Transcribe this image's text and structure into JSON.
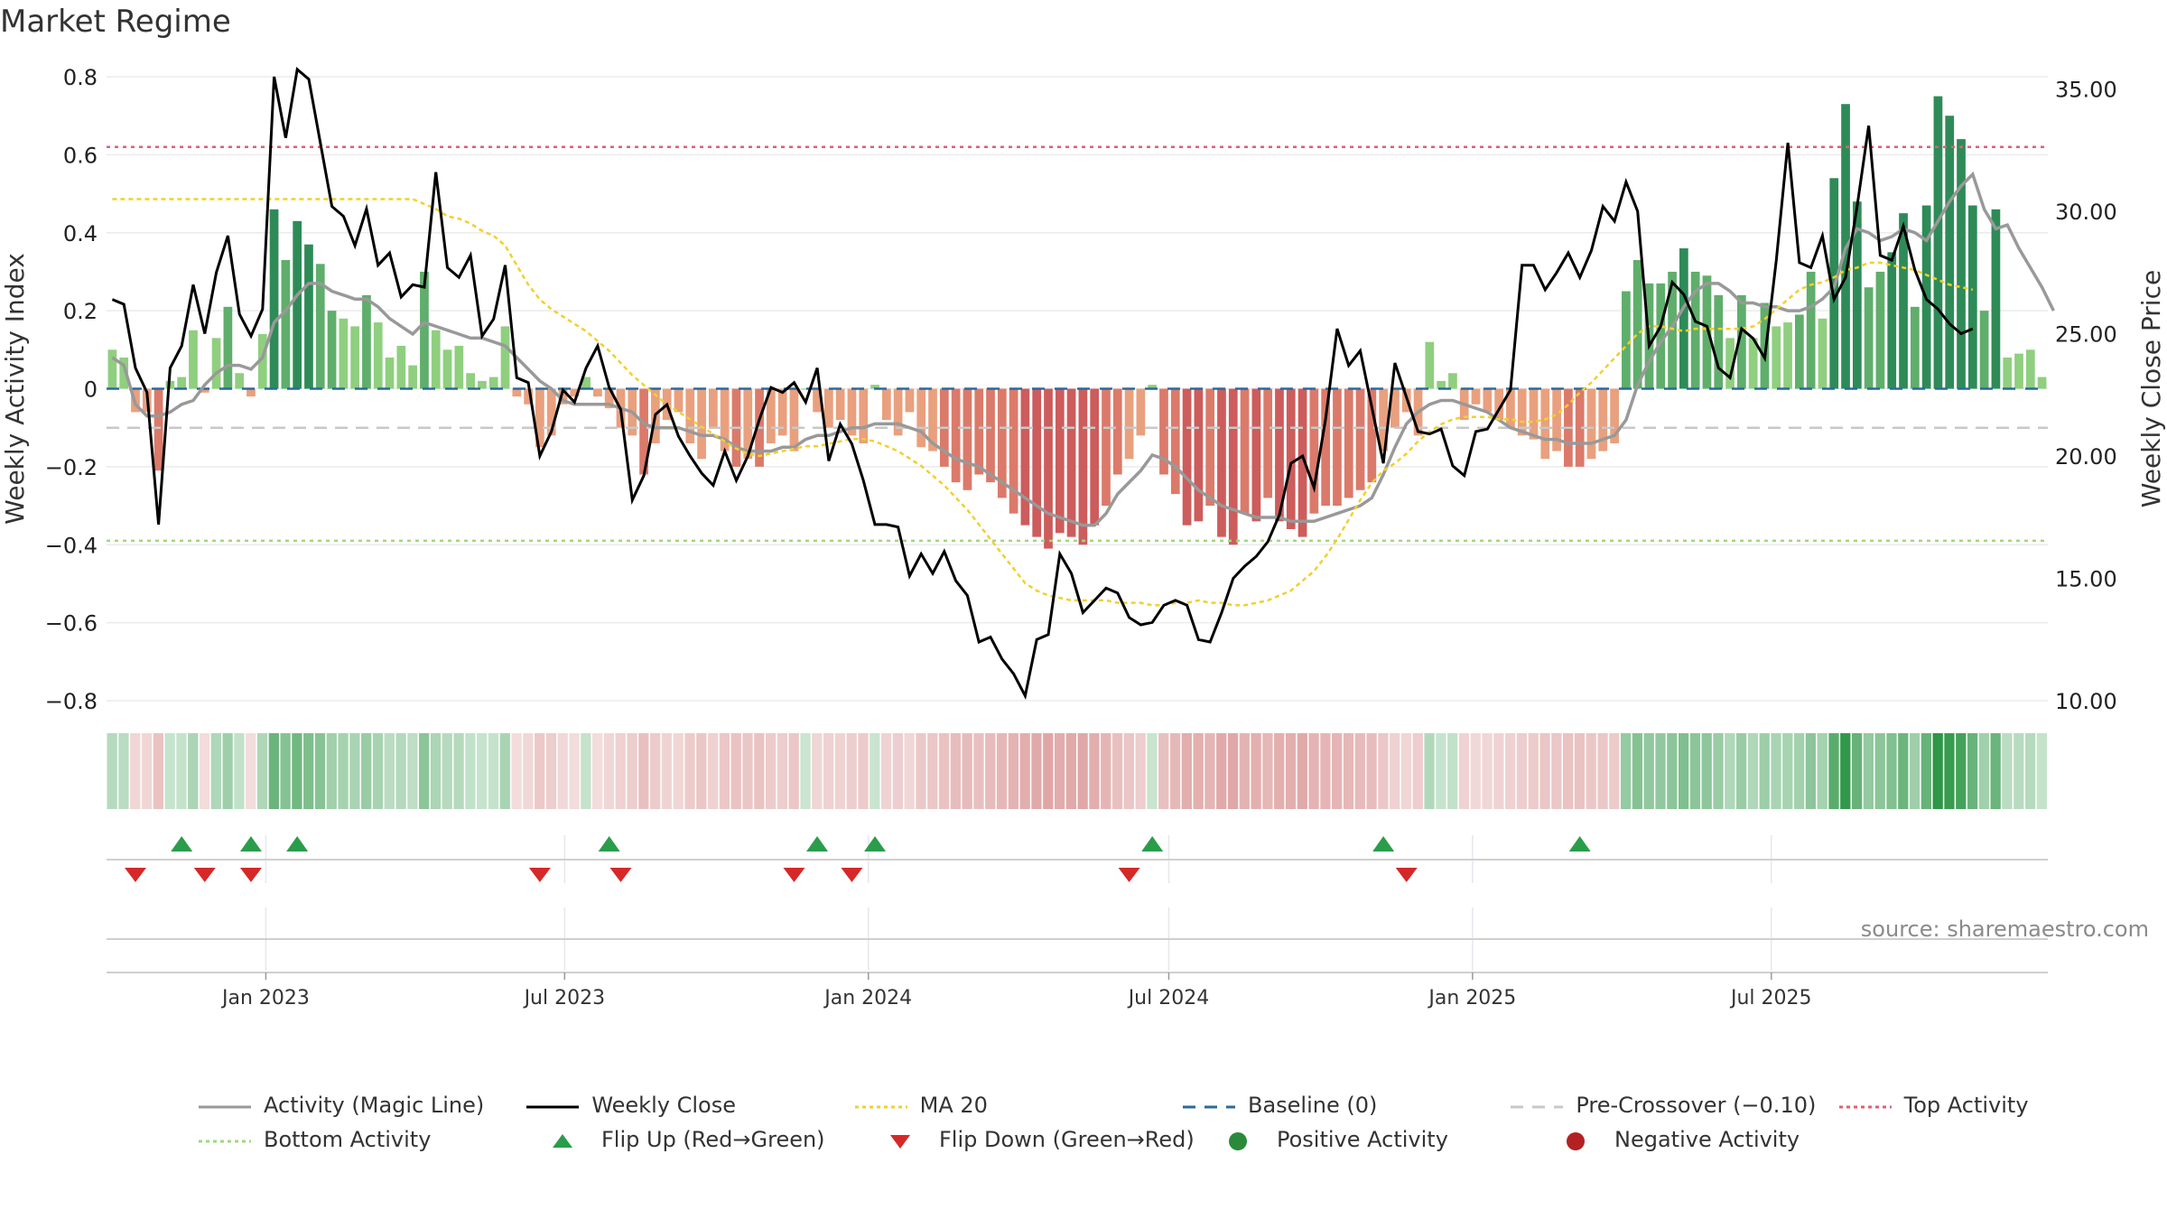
{
  "page": {
    "title": "Market Regime",
    "source": "source: sharemaestro.com"
  },
  "legend": [
    {
      "label": "Activity (Magic Line)",
      "style": "line",
      "color": "#999999"
    },
    {
      "label": "Weekly Close",
      "style": "line",
      "color": "#000000"
    },
    {
      "label": "MA 20",
      "style": "dotted",
      "color": "#f2d02b"
    },
    {
      "label": "Baseline (0)",
      "style": "dashed",
      "color": "#2a6a9e"
    },
    {
      "label": "Pre-Crossover (−0.10)",
      "style": "dashed",
      "color": "#c8c8c8"
    },
    {
      "label": "Top Activity",
      "style": "dotted",
      "color": "#e06070"
    },
    {
      "label": "Bottom Activity",
      "style": "dotted",
      "color": "#9ed97a"
    },
    {
      "label": "Flip Up (Red→Green)",
      "style": "triangle-up",
      "color": "#2a9d4a"
    },
    {
      "label": "Flip Down (Green→Red)",
      "style": "triangle-down",
      "color": "#d62828"
    },
    {
      "label": "Positive Activity",
      "style": "dot",
      "color": "#2a8a3a"
    },
    {
      "label": "Negative Activity",
      "style": "dot",
      "color": "#b22222"
    }
  ],
  "chart_data": {
    "type": "bar",
    "x_start": "2022-09-30",
    "x_step_days": 7,
    "x_ticks": [
      "Jan 2023",
      "Jul 2023",
      "Jan 2024",
      "Jul 2024",
      "Jan 2025",
      "Jul 2025"
    ],
    "x_tick_dates": [
      "2023-01-01",
      "2023-07-01",
      "2024-01-01",
      "2024-07-01",
      "2025-01-01",
      "2025-07-01"
    ],
    "ylabel": "Weekly Activity Index",
    "y2label": "Weekly Close Price",
    "ylim": [
      -0.8,
      0.8
    ],
    "y_ticks": [
      0.8,
      0.6,
      0.4,
      0.2,
      0,
      -0.2,
      -0.4,
      -0.6,
      -0.8
    ],
    "y_tick_labels": [
      "0.8",
      "0.6",
      "0.4",
      "0.2",
      "0",
      "−0.2",
      "−0.4",
      "−0.6",
      "−0.8"
    ],
    "y2lim": [
      10,
      35.5
    ],
    "y2_ticks": [
      35,
      30,
      25,
      20,
      15,
      10
    ],
    "y2_tick_labels": [
      "35.00",
      "30.00",
      "25.00",
      "20.00",
      "15.00",
      "10.00"
    ],
    "thresholds": {
      "top": 0.62,
      "bottom": -0.39,
      "pre_crossover": -0.1,
      "baseline": 0
    },
    "activity": [
      0.1,
      0.08,
      -0.06,
      -0.06,
      -0.21,
      0.02,
      0.03,
      0.15,
      -0.01,
      0.13,
      0.21,
      0.04,
      -0.02,
      0.14,
      0.46,
      0.33,
      0.43,
      0.37,
      0.32,
      0.2,
      0.18,
      0.16,
      0.24,
      0.17,
      0.08,
      0.11,
      0.06,
      0.3,
      0.15,
      0.1,
      0.11,
      0.04,
      0.02,
      0.03,
      0.16,
      -0.02,
      -0.04,
      -0.15,
      -0.12,
      -0.04,
      -0.02,
      0.03,
      -0.02,
      -0.05,
      -0.1,
      -0.12,
      -0.22,
      -0.14,
      -0.08,
      -0.06,
      -0.14,
      -0.18,
      -0.1,
      -0.16,
      -0.2,
      -0.18,
      -0.2,
      -0.14,
      -0.12,
      -0.16,
      0.0,
      -0.06,
      -0.1,
      -0.08,
      -0.12,
      -0.14,
      0.01,
      -0.08,
      -0.12,
      -0.06,
      -0.15,
      -0.16,
      -0.2,
      -0.24,
      -0.26,
      -0.22,
      -0.24,
      -0.28,
      -0.32,
      -0.35,
      -0.38,
      -0.41,
      -0.37,
      -0.38,
      -0.4,
      -0.35,
      -0.3,
      -0.22,
      -0.18,
      -0.12,
      0.01,
      -0.22,
      -0.27,
      -0.35,
      -0.34,
      -0.3,
      -0.38,
      -0.4,
      -0.32,
      -0.34,
      -0.28,
      -0.34,
      -0.36,
      -0.38,
      -0.32,
      -0.3,
      -0.3,
      -0.28,
      -0.26,
      -0.24,
      -0.16,
      -0.1,
      -0.06,
      -0.12,
      0.12,
      0.02,
      0.04,
      -0.08,
      -0.04,
      -0.06,
      -0.08,
      -0.1,
      -0.12,
      -0.13,
      -0.18,
      -0.16,
      -0.2,
      -0.2,
      -0.18,
      -0.16,
      -0.14,
      0.25,
      0.33,
      0.27,
      0.27,
      0.3,
      0.36,
      0.3,
      0.29,
      0.24,
      0.13,
      0.24,
      0.13,
      0.22,
      0.16,
      0.17,
      0.19,
      0.3,
      0.18,
      0.54,
      0.73,
      0.48,
      0.26,
      0.3,
      0.35,
      0.45,
      0.21,
      0.47,
      0.75,
      0.7,
      0.64,
      0.47,
      0.2,
      0.46,
      0.08,
      0.09,
      0.1,
      0.03
    ],
    "magic_line": [
      0.08,
      0.06,
      -0.04,
      -0.07,
      -0.07,
      -0.06,
      -0.04,
      -0.03,
      0.01,
      0.04,
      0.06,
      0.06,
      0.05,
      0.08,
      0.17,
      0.2,
      0.24,
      0.27,
      0.27,
      0.25,
      0.24,
      0.23,
      0.23,
      0.21,
      0.18,
      0.16,
      0.14,
      0.17,
      0.16,
      0.15,
      0.14,
      0.13,
      0.13,
      0.12,
      0.11,
      0.08,
      0.05,
      0.02,
      0.0,
      -0.03,
      -0.04,
      -0.04,
      -0.04,
      -0.04,
      -0.05,
      -0.06,
      -0.09,
      -0.1,
      -0.1,
      -0.1,
      -0.11,
      -0.12,
      -0.12,
      -0.13,
      -0.15,
      -0.16,
      -0.16,
      -0.16,
      -0.15,
      -0.15,
      -0.13,
      -0.12,
      -0.12,
      -0.11,
      -0.1,
      -0.1,
      -0.09,
      -0.09,
      -0.09,
      -0.1,
      -0.11,
      -0.14,
      -0.16,
      -0.18,
      -0.19,
      -0.2,
      -0.22,
      -0.24,
      -0.26,
      -0.28,
      -0.3,
      -0.32,
      -0.33,
      -0.34,
      -0.35,
      -0.35,
      -0.32,
      -0.27,
      -0.24,
      -0.21,
      -0.17,
      -0.18,
      -0.2,
      -0.23,
      -0.26,
      -0.28,
      -0.3,
      -0.31,
      -0.32,
      -0.33,
      -0.33,
      -0.33,
      -0.34,
      -0.34,
      -0.34,
      -0.33,
      -0.32,
      -0.31,
      -0.3,
      -0.28,
      -0.22,
      -0.15,
      -0.09,
      -0.06,
      -0.04,
      -0.03,
      -0.03,
      -0.04,
      -0.05,
      -0.06,
      -0.08,
      -0.1,
      -0.11,
      -0.12,
      -0.13,
      -0.13,
      -0.14,
      -0.14,
      -0.14,
      -0.13,
      -0.12,
      -0.08,
      0.01,
      0.07,
      0.12,
      0.16,
      0.21,
      0.25,
      0.27,
      0.27,
      0.25,
      0.22,
      0.22,
      0.21,
      0.21,
      0.2,
      0.2,
      0.21,
      0.23,
      0.26,
      0.36,
      0.41,
      0.4,
      0.38,
      0.39,
      0.41,
      0.4,
      0.38,
      0.43,
      0.48,
      0.52,
      0.55,
      0.46,
      0.41,
      0.42,
      0.36,
      0.31,
      0.26,
      0.2
    ],
    "weekly_close": [
      26.4,
      26.2,
      23.6,
      22.6,
      17.2,
      23.6,
      24.5,
      27.0,
      25.0,
      27.5,
      29.0,
      25.8,
      24.9,
      26.0,
      35.5,
      33.0,
      35.8,
      35.4,
      32.8,
      30.2,
      29.8,
      28.6,
      30.1,
      27.8,
      28.3,
      26.5,
      27.0,
      26.9,
      31.6,
      27.7,
      27.3,
      28.2,
      24.9,
      25.6,
      27.8,
      23.2,
      23.0,
      20.0,
      21.0,
      22.7,
      22.2,
      23.6,
      24.5,
      22.8,
      21.9,
      18.2,
      19.2,
      21.7,
      22.1,
      20.8,
      20.0,
      19.3,
      18.8,
      20.2,
      19.0,
      20.0,
      21.5,
      22.8,
      22.6,
      23.0,
      22.2,
      23.6,
      19.8,
      21.3,
      20.5,
      19.0,
      17.2,
      17.2,
      17.1,
      15.1,
      16.0,
      15.2,
      16.1,
      14.9,
      14.3,
      12.4,
      12.6,
      11.7,
      11.1,
      10.2,
      12.5,
      12.7,
      16.0,
      15.2,
      13.6,
      14.1,
      14.6,
      14.4,
      13.4,
      13.1,
      13.2,
      13.9,
      14.1,
      13.9,
      12.5,
      12.4,
      13.6,
      15.0,
      15.5,
      15.9,
      16.5,
      17.6,
      19.7,
      20.0,
      18.7,
      21.5,
      25.2,
      23.7,
      24.3,
      22.0,
      19.7,
      23.8,
      22.4,
      21.0,
      20.9,
      21.1,
      19.6,
      19.2,
      21.0,
      21.1,
      21.9,
      22.7,
      27.8,
      27.8,
      26.8,
      27.5,
      28.3,
      27.3,
      28.4,
      30.2,
      29.6,
      31.2,
      30.0,
      24.5,
      25.3,
      27.1,
      26.6,
      25.5,
      25.3,
      23.6,
      23.2,
      25.2,
      24.8,
      24.0,
      28.0,
      32.8,
      27.9,
      27.7,
      29.0,
      26.4,
      27.3,
      30.2,
      33.5,
      28.2,
      28.0,
      29.4,
      27.6,
      26.4,
      26.0,
      25.4,
      25.0,
      25.2
    ],
    "ma20": [
      30.5,
      30.5,
      30.5,
      30.5,
      30.5,
      30.5,
      30.5,
      30.5,
      30.5,
      30.5,
      30.5,
      30.5,
      30.5,
      30.5,
      30.5,
      30.5,
      30.5,
      30.5,
      30.5,
      30.5,
      30.5,
      30.5,
      30.5,
      30.5,
      30.5,
      30.5,
      30.5,
      30.3,
      30.1,
      29.8,
      29.7,
      29.5,
      29.2,
      29.0,
      28.6,
      27.8,
      27.0,
      26.4,
      26.0,
      25.7,
      25.4,
      25.1,
      24.7,
      24.3,
      23.8,
      23.3,
      22.9,
      22.5,
      22.1,
      21.8,
      21.5,
      21.2,
      20.9,
      20.6,
      20.3,
      20.1,
      20.0,
      20.1,
      20.2,
      20.3,
      20.4,
      20.4,
      20.5,
      20.6,
      20.7,
      20.7,
      20.6,
      20.4,
      20.2,
      19.9,
      19.6,
      19.2,
      18.8,
      18.3,
      17.8,
      17.2,
      16.6,
      16.0,
      15.4,
      14.8,
      14.5,
      14.3,
      14.2,
      14.1,
      14.1,
      14.1,
      14.1,
      14.0,
      14.0,
      14.0,
      13.9,
      13.9,
      14.0,
      14.0,
      14.1,
      14.0,
      14.0,
      13.9,
      13.9,
      14.0,
      14.1,
      14.3,
      14.5,
      14.9,
      15.3,
      15.9,
      16.6,
      17.4,
      18.2,
      18.9,
      19.4,
      19.7,
      20.1,
      20.6,
      21.0,
      21.3,
      21.5,
      21.6,
      21.6,
      21.6,
      21.5,
      21.5,
      21.4,
      21.4,
      21.5,
      21.7,
      22.1,
      22.6,
      23.0,
      23.5,
      24.0,
      24.5,
      25.0,
      25.3,
      25.3,
      25.2,
      25.1,
      25.2,
      25.2,
      25.2,
      25.2,
      25.2,
      25.3,
      25.6,
      26.0,
      26.4,
      26.8,
      27.0,
      27.1,
      27.3,
      27.6,
      27.7,
      27.9,
      27.9,
      27.8,
      27.7,
      27.6,
      27.4,
      27.2,
      27.0,
      26.9,
      26.8
    ],
    "flip_up_weeks": [
      6,
      12,
      16,
      43,
      61,
      66,
      90,
      110,
      127
    ],
    "flip_down_weeks": [
      2,
      8,
      12,
      37,
      44,
      59,
      64,
      88,
      112
    ]
  }
}
